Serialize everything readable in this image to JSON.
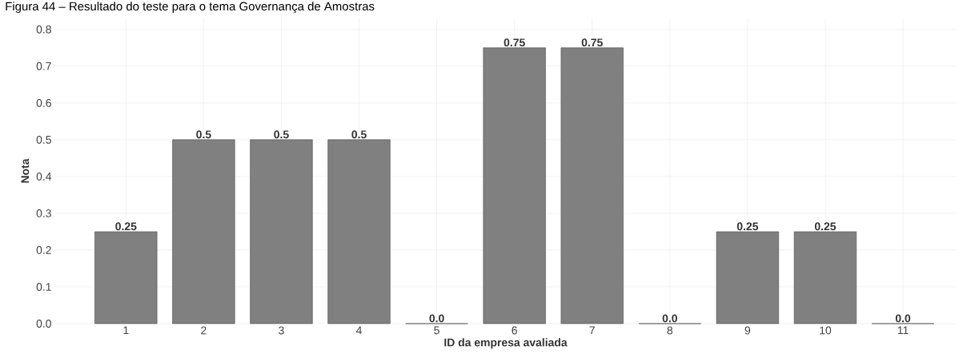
{
  "chart_data": {
    "type": "bar",
    "title": "Figura 44 – Resultado do teste para o tema Governança de Amostras",
    "xlabel": "ID da empresa avaliada",
    "ylabel": "Nota",
    "categories": [
      "1",
      "2",
      "3",
      "4",
      "5",
      "6",
      "7",
      "8",
      "9",
      "10",
      "11"
    ],
    "values": [
      0.25,
      0.5,
      0.5,
      0.5,
      0.0,
      0.75,
      0.75,
      0.0,
      0.25,
      0.25,
      0.0
    ],
    "value_labels": [
      "0.25",
      "0.5",
      "0.5",
      "0.5",
      "0.0",
      "0.75",
      "0.75",
      "0.0",
      "0.25",
      "0.25",
      "0.0"
    ],
    "color": "#808080",
    "ylim": [
      0,
      0.83
    ],
    "yticks": [
      "0.0",
      "0.1",
      "0.2",
      "0.3",
      "0.4",
      "0.5",
      "0.6",
      "0.7",
      "0.8"
    ],
    "grid": true
  }
}
